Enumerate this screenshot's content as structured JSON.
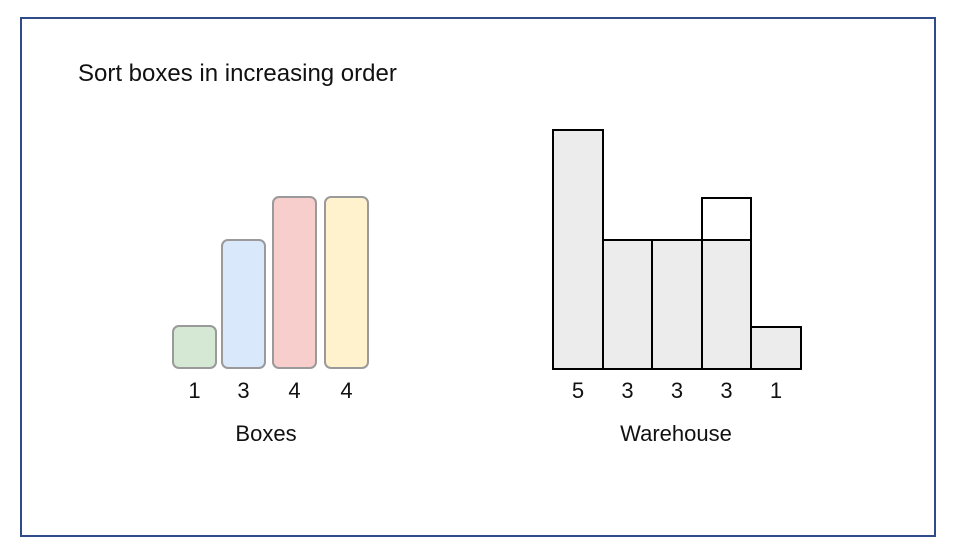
{
  "title": "Sort boxes in increasing order",
  "colors": {
    "frame": "#2f4b8a",
    "warehouse_fill": "#ececec",
    "box_border": "#9a9a9a"
  },
  "boxes": {
    "label": "Boxes",
    "items": [
      {
        "value": "1",
        "height_units": 1,
        "color": "#d5e8d4"
      },
      {
        "value": "3",
        "height_units": 3,
        "color": "#dae8fc"
      },
      {
        "value": "4",
        "height_units": 4,
        "color": "#f8cecc"
      },
      {
        "value": "4",
        "height_units": 4,
        "color": "#fff2cc"
      }
    ]
  },
  "warehouse": {
    "label": "Warehouse",
    "rooms": [
      {
        "value": "5",
        "height_units": 5,
        "outline_only_extra": 0
      },
      {
        "value": "3",
        "height_units": 3,
        "outline_only_extra": 0
      },
      {
        "value": "3",
        "height_units": 3,
        "outline_only_extra": 0
      },
      {
        "value": "3",
        "height_units": 3,
        "outline_only_extra": 1
      },
      {
        "value": "1",
        "height_units": 1,
        "outline_only_extra": 0
      }
    ]
  }
}
